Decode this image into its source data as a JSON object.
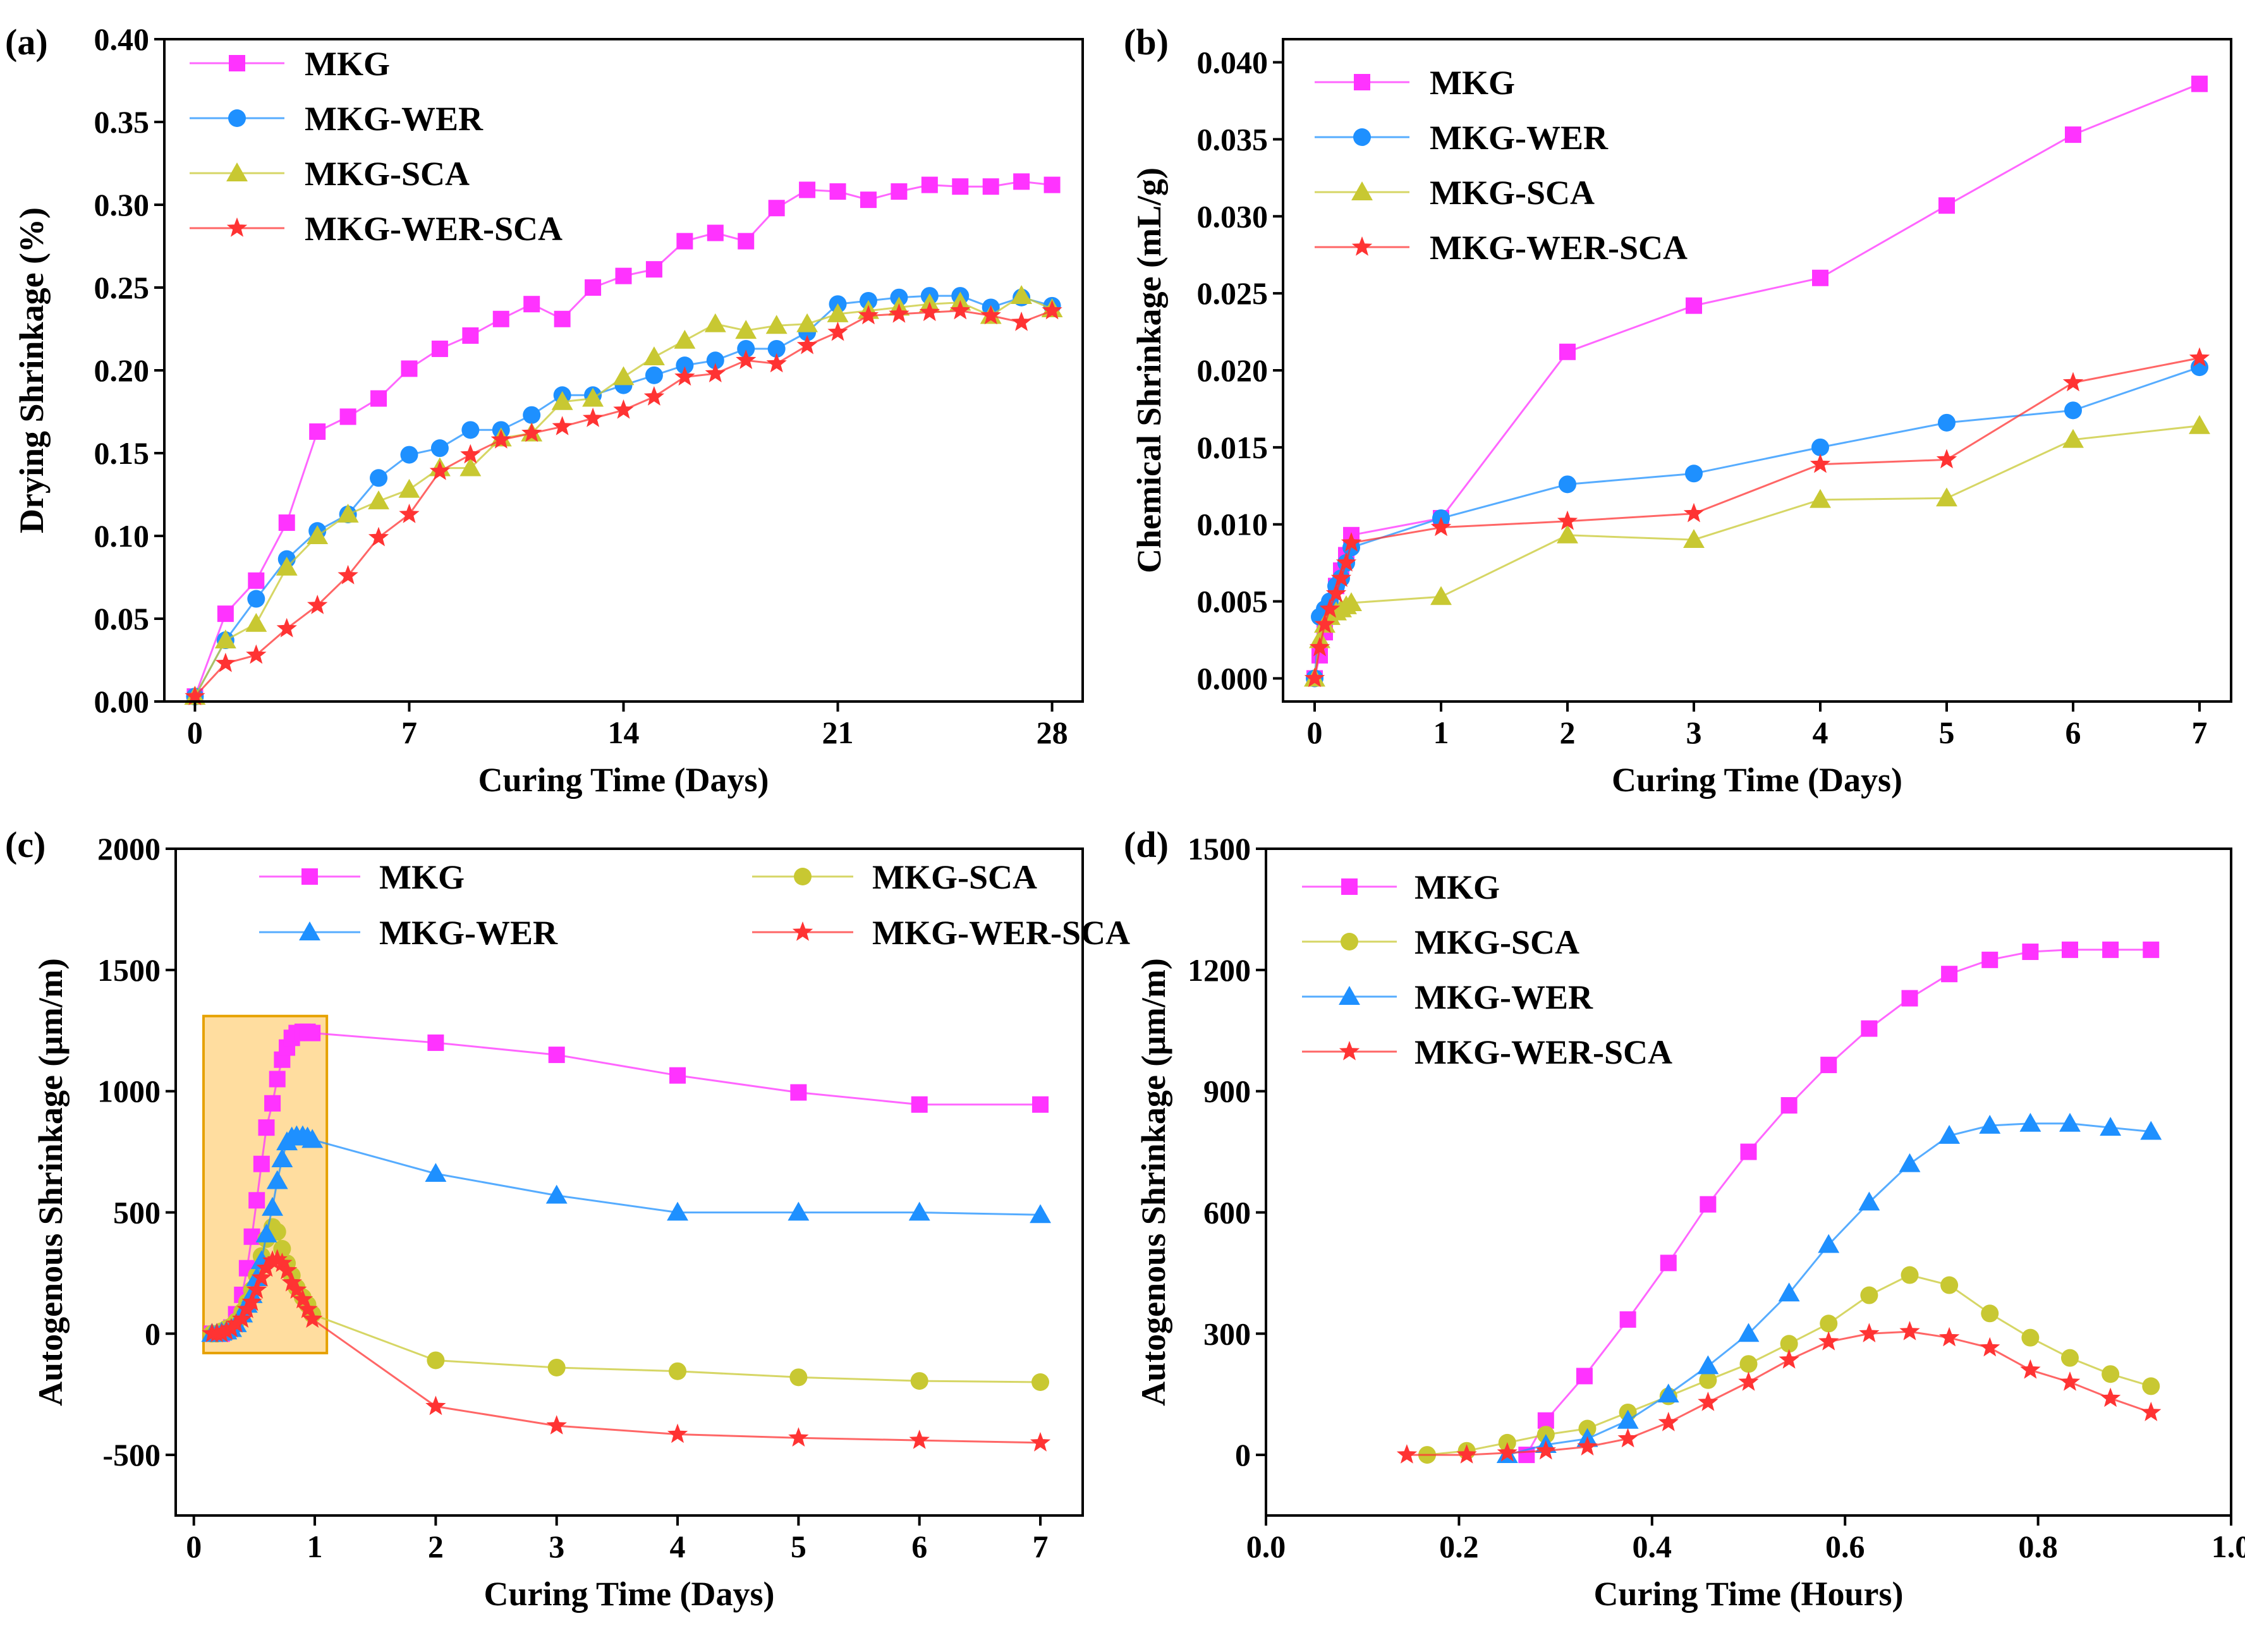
{
  "figure": {
    "colors": {
      "MKG": "#ff33ff",
      "MKG-WER": "#1e90ff",
      "MKG-SCA": "#c8c832",
      "MKG-WER-SCA": "#ff3333"
    }
  },
  "chart_data": [
    {
      "panel_label": "(a)",
      "type": "line",
      "title": "",
      "xlabel": "Curing Time (Days)",
      "ylabel": "Drying Shrinkage (%)",
      "xlim": [
        -1,
        29
      ],
      "ylim": [
        0,
        0.4
      ],
      "xticks": [
        0,
        7,
        14,
        21,
        28
      ],
      "yticks": [
        0.0,
        0.05,
        0.1,
        0.15,
        0.2,
        0.25,
        0.3,
        0.35,
        0.4
      ],
      "ytick_decimals": 2,
      "legend": "top-left",
      "legend_columns": 1,
      "series": [
        {
          "name": "MKG",
          "marker": "square",
          "x": [
            0,
            1,
            2,
            3,
            4,
            5,
            6,
            7,
            8,
            9,
            10,
            11,
            12,
            13,
            14,
            15,
            16,
            17,
            18,
            19,
            20,
            21,
            22,
            23,
            24,
            25,
            26,
            27,
            28
          ],
          "y": [
            0.003,
            0.053,
            0.073,
            0.108,
            0.163,
            0.172,
            0.183,
            0.201,
            0.213,
            0.221,
            0.231,
            0.24,
            0.231,
            0.25,
            0.257,
            0.261,
            0.278,
            0.283,
            0.278,
            0.298,
            0.309,
            0.308,
            0.303,
            0.308,
            0.312,
            0.311,
            0.311,
            0.314,
            0.312
          ]
        },
        {
          "name": "MKG-WER",
          "marker": "circle",
          "x": [
            0,
            1,
            2,
            3,
            4,
            5,
            6,
            7,
            8,
            9,
            10,
            11,
            12,
            13,
            14,
            15,
            16,
            17,
            18,
            19,
            20,
            21,
            22,
            23,
            24,
            25,
            26,
            27,
            28
          ],
          "y": [
            0.003,
            0.037,
            0.062,
            0.086,
            0.103,
            0.113,
            0.135,
            0.149,
            0.153,
            0.164,
            0.164,
            0.173,
            0.185,
            0.185,
            0.191,
            0.197,
            0.203,
            0.206,
            0.213,
            0.213,
            0.223,
            0.24,
            0.242,
            0.244,
            0.245,
            0.245,
            0.238,
            0.244,
            0.239
          ]
        },
        {
          "name": "MKG-SCA",
          "marker": "triangle",
          "x": [
            0,
            1,
            2,
            3,
            4,
            5,
            6,
            7,
            8,
            9,
            10,
            11,
            12,
            13,
            14,
            15,
            16,
            17,
            18,
            19,
            20,
            21,
            22,
            23,
            24,
            25,
            26,
            27,
            28
          ],
          "y": [
            0.003,
            0.037,
            0.047,
            0.081,
            0.1,
            0.113,
            0.121,
            0.128,
            0.141,
            0.141,
            0.159,
            0.162,
            0.181,
            0.183,
            0.196,
            0.208,
            0.218,
            0.228,
            0.224,
            0.227,
            0.228,
            0.234,
            0.236,
            0.238,
            0.24,
            0.241,
            0.233,
            0.245,
            0.237
          ]
        },
        {
          "name": "MKG-WER-SCA",
          "marker": "star",
          "x": [
            0,
            1,
            2,
            3,
            4,
            5,
            6,
            7,
            8,
            9,
            10,
            11,
            12,
            13,
            14,
            15,
            16,
            17,
            18,
            19,
            20,
            21,
            22,
            23,
            24,
            25,
            26,
            27,
            28
          ],
          "y": [
            0.003,
            0.023,
            0.028,
            0.044,
            0.058,
            0.076,
            0.099,
            0.113,
            0.139,
            0.149,
            0.158,
            0.162,
            0.166,
            0.171,
            0.176,
            0.184,
            0.196,
            0.198,
            0.206,
            0.204,
            0.215,
            0.223,
            0.233,
            0.234,
            0.235,
            0.236,
            0.233,
            0.229,
            0.236
          ]
        }
      ]
    },
    {
      "panel_label": "(b)",
      "type": "line",
      "title": "",
      "xlabel": "Curing Time (Days)",
      "ylabel": "Chemical Shrinkage (mL/g)",
      "xlim": [
        -0.25,
        7.25
      ],
      "ylim": [
        -0.0015,
        0.0415
      ],
      "xticks": [
        0,
        1,
        2,
        3,
        4,
        5,
        6,
        7
      ],
      "yticks": [
        0.0,
        0.005,
        0.01,
        0.015,
        0.02,
        0.025,
        0.03,
        0.035,
        0.04
      ],
      "ytick_decimals": 3,
      "legend": "top-left",
      "legend_columns": 1,
      "series": [
        {
          "name": "MKG",
          "marker": "square",
          "x": [
            0,
            0.04,
            0.08,
            0.12,
            0.17,
            0.21,
            0.25,
            0.29,
            1,
            2,
            3,
            4,
            5,
            6,
            7
          ],
          "y": [
            0,
            0.0015,
            0.003,
            0.0045,
            0.006,
            0.007,
            0.008,
            0.0093,
            0.0104,
            0.0212,
            0.0242,
            0.026,
            0.0307,
            0.0353,
            0.0386
          ]
        },
        {
          "name": "MKG-WER",
          "marker": "circle",
          "x": [
            0,
            0.04,
            0.08,
            0.12,
            0.17,
            0.21,
            0.25,
            0.29,
            1,
            2,
            3,
            4,
            5,
            6,
            7
          ],
          "y": [
            0,
            0.004,
            0.0045,
            0.005,
            0.006,
            0.0065,
            0.0075,
            0.0085,
            0.0104,
            0.0126,
            0.0133,
            0.015,
            0.0166,
            0.0174,
            0.0202
          ]
        },
        {
          "name": "MKG-SCA",
          "marker": "triangle",
          "x": [
            0,
            0.04,
            0.08,
            0.12,
            0.17,
            0.21,
            0.25,
            0.29,
            1,
            2,
            3,
            4,
            5,
            6,
            7
          ],
          "y": [
            0,
            0.0025,
            0.0035,
            0.004,
            0.0043,
            0.0045,
            0.0047,
            0.0049,
            0.0053,
            0.0093,
            0.009,
            0.0116,
            0.0117,
            0.0155,
            0.0164
          ]
        },
        {
          "name": "MKG-WER-SCA",
          "marker": "star",
          "x": [
            0,
            0.04,
            0.08,
            0.12,
            0.17,
            0.21,
            0.25,
            0.29,
            1,
            2,
            3,
            4,
            5,
            6,
            7
          ],
          "y": [
            0,
            0.002,
            0.0035,
            0.0045,
            0.0055,
            0.0065,
            0.0075,
            0.0088,
            0.0098,
            0.0102,
            0.0107,
            0.0139,
            0.0142,
            0.0192,
            0.0208
          ]
        }
      ]
    },
    {
      "panel_label": "(c)",
      "type": "line",
      "title": "",
      "xlabel": "Curing Time (Days)",
      "ylabel": "Autogenous Shrinkage (μm/m)",
      "xlim": [
        -0.15,
        7.35
      ],
      "ylim": [
        -750,
        2000
      ],
      "xticks": [
        0,
        1,
        2,
        3,
        4,
        5,
        6,
        7
      ],
      "yticks": [
        -500,
        0,
        500,
        1000,
        1500,
        2000
      ],
      "ytick_decimals": 0,
      "legend": "top",
      "legend_columns": 2,
      "highlight_box": {
        "x": [
          0.08,
          1.1
        ],
        "y": [
          -80,
          1310
        ]
      },
      "series": [
        {
          "name": "MKG",
          "marker": "square",
          "x": [
            0.15,
            0.19,
            0.23,
            0.27,
            0.31,
            0.35,
            0.4,
            0.44,
            0.48,
            0.52,
            0.56,
            0.6,
            0.65,
            0.69,
            0.73,
            0.77,
            0.81,
            0.85,
            0.9,
            0.94,
            0.98,
            2,
            3,
            4,
            5,
            6,
            7
          ],
          "y": [
            0,
            0,
            0,
            10,
            25,
            80,
            160,
            270,
            400,
            550,
            700,
            850,
            950,
            1050,
            1130,
            1180,
            1220,
            1240,
            1245,
            1245,
            1240,
            1200,
            1150,
            1065,
            995,
            945,
            945
          ]
        },
        {
          "name": "MKG-SCA",
          "marker": "circle",
          "x": [
            0.15,
            0.19,
            0.23,
            0.27,
            0.31,
            0.35,
            0.4,
            0.44,
            0.48,
            0.52,
            0.56,
            0.6,
            0.65,
            0.69,
            0.73,
            0.77,
            0.81,
            0.85,
            0.9,
            0.94,
            0.98,
            2,
            3,
            4,
            5,
            6,
            7
          ],
          "y": [
            0,
            0,
            10,
            20,
            30,
            50,
            90,
            130,
            180,
            240,
            320,
            390,
            440,
            420,
            350,
            290,
            240,
            190,
            150,
            120,
            80,
            -110,
            -140,
            -155,
            -180,
            -195,
            -200
          ]
        },
        {
          "name": "MKG-WER",
          "marker": "triangle",
          "x": [
            0.15,
            0.19,
            0.23,
            0.27,
            0.31,
            0.35,
            0.4,
            0.44,
            0.48,
            0.52,
            0.56,
            0.6,
            0.65,
            0.69,
            0.73,
            0.77,
            0.81,
            0.85,
            0.9,
            0.94,
            0.98,
            2,
            3,
            4,
            5,
            6,
            7
          ],
          "y": [
            0,
            0,
            5,
            10,
            20,
            40,
            80,
            120,
            160,
            230,
            300,
            410,
            520,
            630,
            720,
            790,
            810,
            815,
            815,
            810,
            800,
            660,
            570,
            500,
            500,
            500,
            490
          ]
        },
        {
          "name": "MKG-WER-SCA",
          "marker": "star",
          "x": [
            0.15,
            0.19,
            0.23,
            0.27,
            0.31,
            0.35,
            0.4,
            0.44,
            0.48,
            0.52,
            0.56,
            0.6,
            0.65,
            0.69,
            0.73,
            0.77,
            0.81,
            0.85,
            0.9,
            0.94,
            0.98,
            2,
            3,
            4,
            5,
            6,
            7
          ],
          "y": [
            0,
            0,
            0,
            10,
            20,
            40,
            60,
            100,
            130,
            180,
            230,
            270,
            300,
            305,
            290,
            260,
            210,
            180,
            140,
            100,
            60,
            -300,
            -380,
            -415,
            -430,
            -440,
            -450
          ]
        }
      ]
    },
    {
      "panel_label": "(d)",
      "type": "line",
      "title": "",
      "xlabel": "Curing Time (Hours)",
      "ylabel": "Autogenous Shrinkage (μm/m)",
      "xlim": [
        0,
        1.0
      ],
      "ylim": [
        -150,
        1500
      ],
      "xticks": [
        0.0,
        0.2,
        0.4,
        0.6,
        0.8,
        1.0
      ],
      "yticks": [
        0,
        300,
        600,
        900,
        1200,
        1500
      ],
      "xtick_decimals": 1,
      "ytick_decimals": 0,
      "legend": "top-left",
      "legend_columns": 1,
      "series": [
        {
          "name": "MKG",
          "marker": "square",
          "x": [
            0.27,
            0.29,
            0.33,
            0.375,
            0.417,
            0.458,
            0.5,
            0.542,
            0.583,
            0.625,
            0.667,
            0.708,
            0.75,
            0.792,
            0.833,
            0.875,
            0.917
          ],
          "y": [
            0,
            85,
            195,
            335,
            475,
            620,
            750,
            865,
            965,
            1055,
            1130,
            1190,
            1225,
            1245,
            1250,
            1250,
            1250
          ]
        },
        {
          "name": "MKG-SCA",
          "marker": "circle",
          "x": [
            0.167,
            0.208,
            0.25,
            0.29,
            0.333,
            0.375,
            0.417,
            0.458,
            0.5,
            0.542,
            0.583,
            0.625,
            0.667,
            0.708,
            0.75,
            0.792,
            0.833,
            0.875,
            0.917
          ],
          "y": [
            0,
            10,
            30,
            50,
            65,
            105,
            145,
            185,
            225,
            275,
            325,
            395,
            445,
            420,
            350,
            290,
            240,
            200,
            170
          ]
        },
        {
          "name": "MKG-WER",
          "marker": "triangle",
          "x": [
            0.25,
            0.29,
            0.333,
            0.375,
            0.417,
            0.458,
            0.5,
            0.542,
            0.583,
            0.625,
            0.667,
            0.708,
            0.75,
            0.792,
            0.833,
            0.875,
            0.917
          ],
          "y": [
            0,
            25,
            40,
            85,
            150,
            220,
            300,
            400,
            520,
            625,
            720,
            790,
            815,
            820,
            820,
            810,
            800
          ]
        },
        {
          "name": "MKG-WER-SCA",
          "marker": "star",
          "x": [
            0.146,
            0.208,
            0.25,
            0.29,
            0.333,
            0.375,
            0.417,
            0.458,
            0.5,
            0.542,
            0.583,
            0.625,
            0.667,
            0.708,
            0.75,
            0.792,
            0.833,
            0.875,
            0.917
          ],
          "y": [
            0,
            0,
            5,
            10,
            20,
            40,
            80,
            130,
            180,
            235,
            280,
            300,
            305,
            290,
            265,
            210,
            180,
            140,
            105
          ]
        }
      ]
    }
  ]
}
